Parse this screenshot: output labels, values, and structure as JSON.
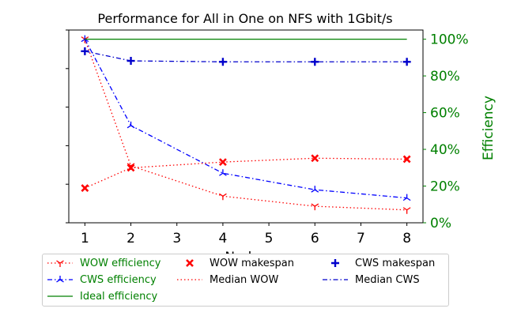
{
  "chart_data": {
    "type": "line",
    "title": "Performance for All in One on NFS with 1Gbit/s",
    "xlabel": "Nodes",
    "ylabel_right": "Efficiency",
    "x": [
      1,
      2,
      4,
      6,
      8
    ],
    "xticks": [
      "1",
      "2",
      "3",
      "4",
      "5",
      "6",
      "7",
      "8"
    ],
    "xlim": [
      0.65,
      8.35
    ],
    "left_axis": {
      "ylim": [
        0,
        1
      ],
      "tick_labels_shown": false,
      "ticks": 6
    },
    "right_axis": {
      "ylim": [
        0,
        1.05
      ],
      "ticks": [
        0,
        0.2,
        0.4,
        0.6,
        0.8,
        1.0
      ],
      "tick_labels": [
        "0%",
        "20%",
        "40%",
        "60%",
        "80%",
        "100%"
      ]
    },
    "series": [
      {
        "name": "WOW efficiency",
        "axis": "right",
        "marker": "tri_down",
        "line": "dotted",
        "color": "#ff0000",
        "values": [
          1.0,
          0.31,
          0.145,
          0.09,
          0.07
        ]
      },
      {
        "name": "CWS efficiency",
        "axis": "right",
        "marker": "tri_up",
        "line": "dashdot",
        "color": "#0000ff",
        "values": [
          1.0,
          0.53,
          0.27,
          0.18,
          0.135
        ]
      },
      {
        "name": "Ideal efficiency",
        "axis": "right",
        "marker": "none",
        "line": "solid",
        "color": "#008000",
        "values": [
          1.0,
          1.0,
          1.0,
          1.0,
          1.0
        ]
      },
      {
        "name": "WOW makespan",
        "axis": "left",
        "marker": "x",
        "line": "none",
        "color": "#ff0000",
        "values": [
          0.18,
          0.285,
          0.315,
          0.335,
          0.33
        ]
      },
      {
        "name": "Median WOW",
        "axis": "left",
        "marker": "none",
        "line": "dotted",
        "color": "#ff0000",
        "values": [
          0.18,
          0.285,
          0.315,
          0.335,
          0.33
        ]
      },
      {
        "name": "CWS makespan",
        "axis": "left",
        "marker": "plus",
        "line": "none",
        "color": "#0000cc",
        "values": [
          0.89,
          0.84,
          0.835,
          0.835,
          0.835
        ]
      },
      {
        "name": "Median CWS",
        "axis": "left",
        "marker": "none",
        "line": "dashdot",
        "color": "#0000cc",
        "values": [
          0.89,
          0.84,
          0.835,
          0.835,
          0.835
        ]
      }
    ],
    "legend": {
      "placement": "bottom",
      "entries": [
        {
          "label": "WOW efficiency",
          "color": "#008000"
        },
        {
          "label": "WOW makespan",
          "color": "#000000"
        },
        {
          "label": "CWS makespan",
          "color": "#000000"
        },
        {
          "label": "CWS efficiency",
          "color": "#008000"
        },
        {
          "label": "Median WOW",
          "color": "#000000"
        },
        {
          "label": "Median CWS",
          "color": "#000000"
        },
        {
          "label": "Ideal efficiency",
          "color": "#008000"
        }
      ]
    },
    "colors": {
      "efficiency_axis": "#008000",
      "wow": "#ff0000",
      "cws": "#0000ff"
    }
  }
}
